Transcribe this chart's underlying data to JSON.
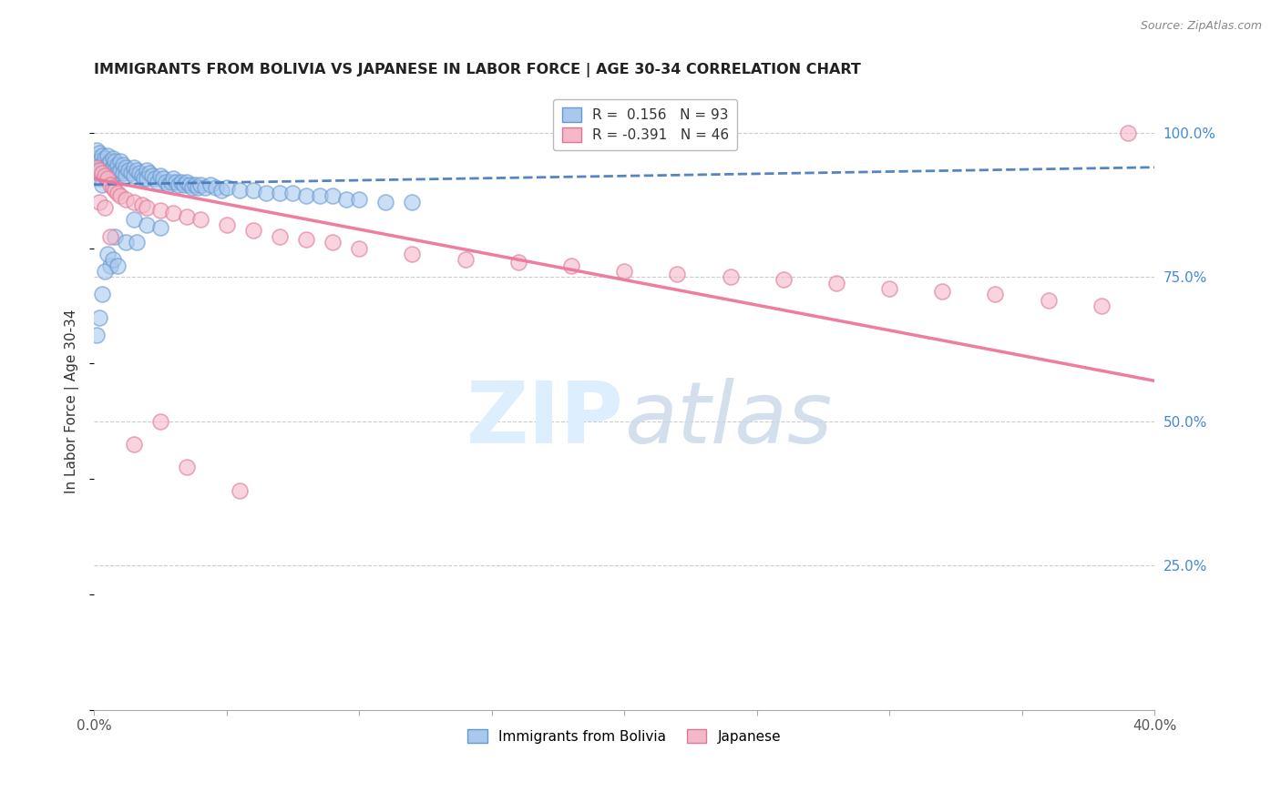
{
  "title": "IMMIGRANTS FROM BOLIVIA VS JAPANESE IN LABOR FORCE | AGE 30-34 CORRELATION CHART",
  "source": "Source: ZipAtlas.com",
  "ylabel": "In Labor Force | Age 30-34",
  "xlim": [
    0.0,
    0.4
  ],
  "ylim": [
    0.0,
    1.07
  ],
  "bolivia_R": 0.156,
  "bolivia_N": 93,
  "japanese_R": -0.391,
  "japanese_N": 46,
  "bolivia_color": "#a8c8f0",
  "japanese_color": "#f5b8c8",
  "bolivia_edge_color": "#6699cc",
  "japanese_edge_color": "#dd7799",
  "bolivia_line_color": "#4477bb",
  "japanese_line_color": "#ee7799",
  "watermark_color": "#ddeeff",
  "grid_color": "#cccccc",
  "right_tick_color": "#4488dd",
  "bolivia_x": [
    0.001,
    0.001,
    0.001,
    0.002,
    0.002,
    0.002,
    0.002,
    0.003,
    0.003,
    0.003,
    0.003,
    0.004,
    0.004,
    0.004,
    0.005,
    0.005,
    0.005,
    0.006,
    0.006,
    0.007,
    0.007,
    0.007,
    0.008,
    0.008,
    0.009,
    0.009,
    0.01,
    0.01,
    0.011,
    0.011,
    0.012,
    0.012,
    0.013,
    0.014,
    0.015,
    0.015,
    0.016,
    0.017,
    0.018,
    0.019,
    0.02,
    0.02,
    0.021,
    0.022,
    0.023,
    0.024,
    0.025,
    0.026,
    0.027,
    0.028,
    0.029,
    0.03,
    0.031,
    0.032,
    0.033,
    0.034,
    0.035,
    0.036,
    0.037,
    0.038,
    0.039,
    0.04,
    0.042,
    0.044,
    0.046,
    0.048,
    0.05,
    0.055,
    0.06,
    0.065,
    0.07,
    0.075,
    0.08,
    0.085,
    0.09,
    0.095,
    0.1,
    0.11,
    0.12,
    0.015,
    0.02,
    0.025,
    0.008,
    0.012,
    0.006,
    0.004,
    0.003,
    0.002,
    0.001,
    0.005,
    0.007,
    0.009,
    0.016
  ],
  "bolivia_y": [
    0.97,
    0.955,
    0.94,
    0.965,
    0.95,
    0.935,
    0.92,
    0.96,
    0.945,
    0.93,
    0.91,
    0.955,
    0.94,
    0.925,
    0.96,
    0.945,
    0.93,
    0.95,
    0.935,
    0.955,
    0.94,
    0.925,
    0.95,
    0.935,
    0.945,
    0.93,
    0.95,
    0.935,
    0.945,
    0.93,
    0.94,
    0.925,
    0.935,
    0.93,
    0.94,
    0.925,
    0.935,
    0.93,
    0.925,
    0.92,
    0.935,
    0.92,
    0.93,
    0.925,
    0.92,
    0.915,
    0.925,
    0.92,
    0.915,
    0.91,
    0.915,
    0.92,
    0.915,
    0.91,
    0.915,
    0.91,
    0.915,
    0.91,
    0.905,
    0.91,
    0.905,
    0.91,
    0.905,
    0.91,
    0.905,
    0.9,
    0.905,
    0.9,
    0.9,
    0.895,
    0.895,
    0.895,
    0.89,
    0.89,
    0.89,
    0.885,
    0.885,
    0.88,
    0.88,
    0.85,
    0.84,
    0.835,
    0.82,
    0.81,
    0.77,
    0.76,
    0.72,
    0.68,
    0.65,
    0.79,
    0.78,
    0.77,
    0.81
  ],
  "japanese_x": [
    0.001,
    0.002,
    0.003,
    0.004,
    0.005,
    0.006,
    0.007,
    0.008,
    0.009,
    0.01,
    0.012,
    0.015,
    0.018,
    0.02,
    0.025,
    0.03,
    0.035,
    0.04,
    0.05,
    0.06,
    0.07,
    0.08,
    0.09,
    0.1,
    0.12,
    0.14,
    0.16,
    0.18,
    0.2,
    0.22,
    0.24,
    0.26,
    0.28,
    0.3,
    0.32,
    0.34,
    0.36,
    0.38,
    0.39,
    0.002,
    0.004,
    0.006,
    0.015,
    0.025,
    0.035,
    0.055
  ],
  "japanese_y": [
    0.94,
    0.935,
    0.93,
    0.925,
    0.92,
    0.91,
    0.905,
    0.9,
    0.895,
    0.89,
    0.885,
    0.88,
    0.875,
    0.87,
    0.865,
    0.86,
    0.855,
    0.85,
    0.84,
    0.83,
    0.82,
    0.815,
    0.81,
    0.8,
    0.79,
    0.78,
    0.775,
    0.77,
    0.76,
    0.755,
    0.75,
    0.745,
    0.74,
    0.73,
    0.725,
    0.72,
    0.71,
    0.7,
    1.0,
    0.88,
    0.87,
    0.82,
    0.46,
    0.5,
    0.42,
    0.38
  ],
  "bolivia_line_x": [
    0.0,
    0.4
  ],
  "bolivia_line_y": [
    0.91,
    0.94
  ],
  "japanese_line_x": [
    0.0,
    0.4
  ],
  "japanese_line_y": [
    0.92,
    0.57
  ]
}
